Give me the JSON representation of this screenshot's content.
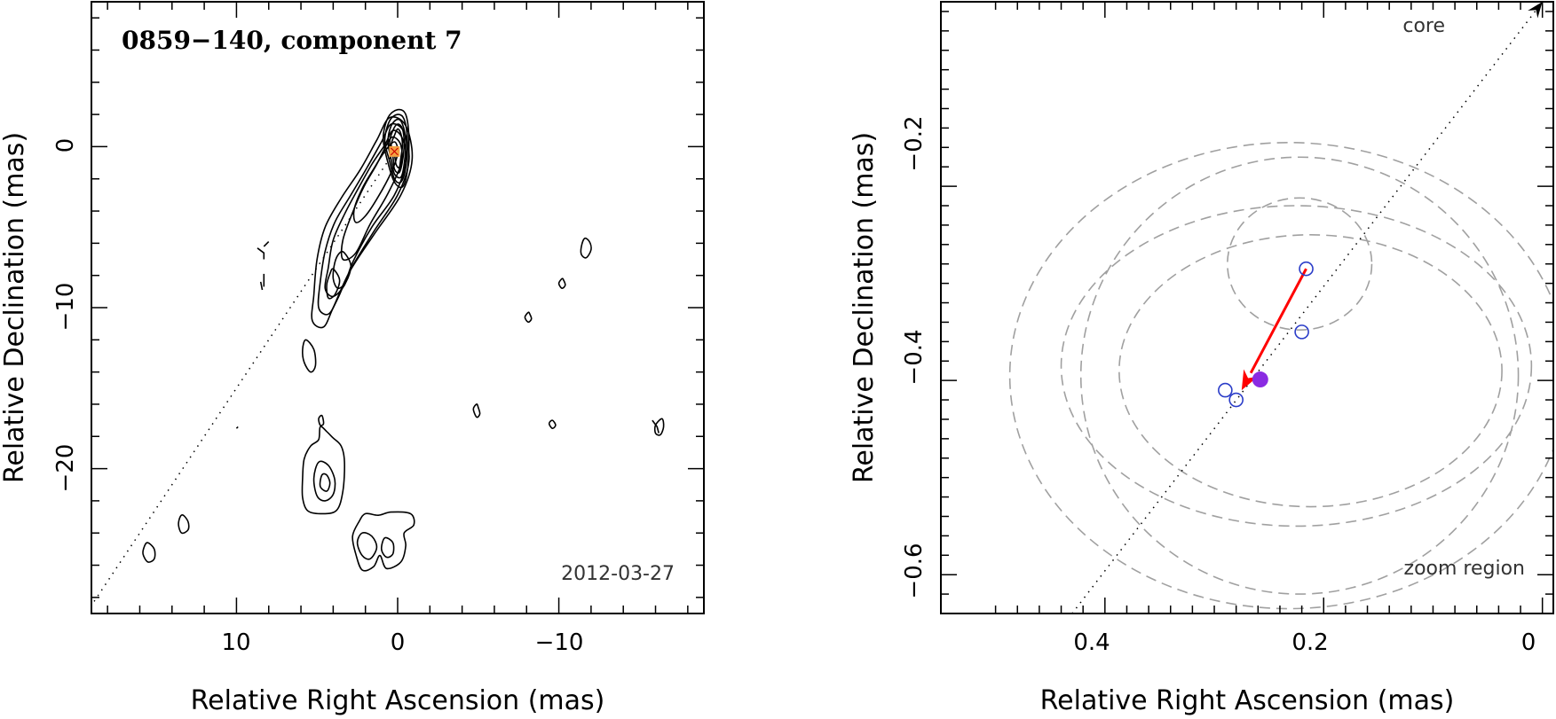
{
  "chart_data": [
    {
      "id": "left",
      "type": "contour",
      "title": "0859−140, component 7",
      "epoch": "2012-03-27",
      "xlabel": "Relative Right Ascension (mas)",
      "ylabel": "Relative Declination (mas)",
      "xlim": [
        19,
        -19
      ],
      "ylim": [
        -29,
        9
      ],
      "x_tick_labels": [
        "10",
        "0",
        "−10"
      ],
      "y_tick_labels": [
        "−20",
        "−10",
        "0"
      ],
      "jet_axis_from": [
        0,
        0
      ],
      "jet_axis_to": [
        19,
        -28.5
      ],
      "marker": {
        "ra": 0.2,
        "dec": -0.3,
        "color": "#f4a040"
      },
      "core_contours": [
        [
          [
            0.0,
            2.3
          ],
          [
            -0.5,
            2.0
          ],
          [
            -0.7,
            0.5
          ],
          [
            -0.6,
            -1.5
          ],
          [
            -0.3,
            -2.5
          ],
          [
            0.2,
            -2.2
          ],
          [
            0.6,
            -1.0
          ],
          [
            0.9,
            0.5
          ],
          [
            0.6,
            1.8
          ]
        ],
        [
          [
            0.0,
            2.0
          ],
          [
            -0.4,
            1.7
          ],
          [
            -0.6,
            0.4
          ],
          [
            -0.5,
            -1.3
          ],
          [
            -0.2,
            -2.2
          ],
          [
            0.2,
            -2.0
          ],
          [
            0.5,
            -0.9
          ],
          [
            0.8,
            0.4
          ],
          [
            0.5,
            1.6
          ]
        ],
        [
          [
            0.0,
            1.7
          ],
          [
            -0.3,
            1.4
          ],
          [
            -0.5,
            0.3
          ],
          [
            -0.4,
            -1.1
          ],
          [
            -0.2,
            -1.9
          ],
          [
            0.2,
            -1.7
          ],
          [
            0.4,
            -0.8
          ],
          [
            0.6,
            0.3
          ],
          [
            0.4,
            1.3
          ]
        ],
        [
          [
            0.0,
            1.4
          ],
          [
            -0.3,
            1.1
          ],
          [
            -0.4,
            0.2
          ],
          [
            -0.3,
            -0.9
          ],
          [
            -0.1,
            -1.6
          ],
          [
            0.2,
            -1.4
          ],
          [
            0.3,
            -0.6
          ],
          [
            0.5,
            0.2
          ],
          [
            0.3,
            1.0
          ]
        ],
        [
          [
            0.0,
            1.1
          ],
          [
            -0.2,
            0.8
          ],
          [
            -0.3,
            0.1
          ],
          [
            -0.2,
            -0.7
          ],
          [
            -0.1,
            -1.3
          ],
          [
            0.1,
            -1.1
          ],
          [
            0.2,
            -0.5
          ],
          [
            0.4,
            0.1
          ],
          [
            0.2,
            0.7
          ]
        ]
      ],
      "jet_contours": [
        [
          [
            0.5,
            1.8
          ],
          [
            -0.5,
            1.3
          ],
          [
            -0.9,
            -0.8
          ],
          [
            -0.2,
            -3.0
          ],
          [
            1.5,
            -5.5
          ],
          [
            3.0,
            -7.8
          ],
          [
            4.0,
            -10.0
          ],
          [
            4.6,
            -11.2
          ],
          [
            5.3,
            -10.8
          ],
          [
            5.2,
            -9.2
          ],
          [
            5.0,
            -7.0
          ],
          [
            4.5,
            -5.0
          ],
          [
            3.5,
            -3.2
          ],
          [
            2.3,
            -1.4
          ],
          [
            1.3,
            0.4
          ]
        ],
        [
          [
            0.4,
            1.4
          ],
          [
            -0.4,
            0.9
          ],
          [
            -0.7,
            -0.9
          ],
          [
            0.0,
            -3.0
          ],
          [
            1.5,
            -5.3
          ],
          [
            2.9,
            -7.6
          ],
          [
            3.7,
            -9.4
          ],
          [
            4.3,
            -10.4
          ],
          [
            4.9,
            -10.0
          ],
          [
            4.8,
            -8.4
          ],
          [
            4.5,
            -6.5
          ],
          [
            3.9,
            -4.7
          ],
          [
            2.9,
            -3.0
          ],
          [
            1.9,
            -1.3
          ],
          [
            1.0,
            0.3
          ]
        ],
        [
          [
            0.3,
            1.0
          ],
          [
            -0.3,
            0.5
          ],
          [
            -0.5,
            -1.0
          ],
          [
            0.2,
            -3.0
          ],
          [
            1.6,
            -5.0
          ],
          [
            2.8,
            -7.2
          ],
          [
            3.3,
            -8.6
          ],
          [
            4.0,
            -9.3
          ],
          [
            4.5,
            -8.8
          ],
          [
            4.3,
            -7.5
          ],
          [
            4.0,
            -5.8
          ],
          [
            3.3,
            -4.2
          ],
          [
            2.5,
            -2.7
          ],
          [
            1.6,
            -1.1
          ],
          [
            0.8,
            0.1
          ]
        ],
        [
          [
            0.3,
            0.6
          ],
          [
            -0.2,
            0.1
          ],
          [
            -0.2,
            -1.1
          ],
          [
            0.6,
            -2.9
          ],
          [
            1.7,
            -4.8
          ],
          [
            2.6,
            -6.6
          ],
          [
            3.4,
            -7.0
          ],
          [
            3.4,
            -5.8
          ],
          [
            2.8,
            -4.1
          ],
          [
            2.1,
            -2.5
          ],
          [
            1.3,
            -1.1
          ],
          [
            0.7,
            0.1
          ]
        ],
        [
          [
            0.2,
            0.3
          ],
          [
            0.0,
            -0.4
          ],
          [
            0.4,
            -1.6
          ],
          [
            1.2,
            -3.1
          ],
          [
            2.0,
            -4.3
          ],
          [
            2.6,
            -4.7
          ],
          [
            2.7,
            -3.9
          ],
          [
            2.2,
            -2.6
          ],
          [
            1.5,
            -1.4
          ],
          [
            0.8,
            -0.3
          ]
        ],
        [
          [
            3.3,
            -6.6
          ],
          [
            2.9,
            -7.4
          ],
          [
            3.2,
            -8.4
          ],
          [
            3.7,
            -8.8
          ],
          [
            4.0,
            -8.2
          ],
          [
            3.9,
            -7.2
          ],
          [
            3.6,
            -6.6
          ]
        ],
        [
          [
            4.0,
            -7.6
          ],
          [
            3.6,
            -8.3
          ],
          [
            3.9,
            -9.2
          ],
          [
            4.3,
            -9.4
          ],
          [
            4.4,
            -8.6
          ],
          [
            4.2,
            -7.9
          ]
        ]
      ],
      "blob_contours": [
        [
          [
            5.7,
            -12.0
          ],
          [
            5.2,
            -12.6
          ],
          [
            5.1,
            -13.6
          ],
          [
            5.4,
            -14.0
          ],
          [
            5.8,
            -13.4
          ],
          [
            5.9,
            -12.6
          ]
        ],
        [
          [
            4.8,
            -17.4
          ],
          [
            4.9,
            -18.2
          ],
          [
            5.4,
            -18.6
          ],
          [
            5.8,
            -19.4
          ],
          [
            5.9,
            -20.6
          ],
          [
            5.9,
            -21.8
          ],
          [
            5.6,
            -22.6
          ],
          [
            4.8,
            -22.8
          ],
          [
            3.8,
            -22.6
          ],
          [
            3.4,
            -21.4
          ],
          [
            3.3,
            -19.6
          ],
          [
            3.5,
            -18.6
          ],
          [
            4.0,
            -18.1
          ],
          [
            4.4,
            -17.7
          ]
        ],
        [
          [
            4.9,
            -19.6
          ],
          [
            5.2,
            -20.6
          ],
          [
            5.0,
            -21.7
          ],
          [
            4.5,
            -22.0
          ],
          [
            4.0,
            -21.6
          ],
          [
            3.9,
            -20.7
          ],
          [
            4.3,
            -19.8
          ]
        ],
        [
          [
            4.7,
            -20.4
          ],
          [
            4.8,
            -21.1
          ],
          [
            4.4,
            -21.4
          ],
          [
            4.2,
            -20.9
          ],
          [
            4.4,
            -20.4
          ]
        ],
        [
          [
            4.7,
            -16.7
          ],
          [
            4.6,
            -17.2
          ],
          [
            4.8,
            -17.3
          ],
          [
            4.9,
            -16.9
          ]
        ],
        [
          [
            2.0,
            -22.8
          ],
          [
            1.2,
            -22.9
          ],
          [
            0.4,
            -22.7
          ],
          [
            -0.8,
            -22.8
          ],
          [
            -1.0,
            -23.5
          ],
          [
            -0.4,
            -24.0
          ],
          [
            -0.5,
            -24.8
          ],
          [
            -0.2,
            -25.8
          ],
          [
            0.7,
            -26.2
          ],
          [
            1.1,
            -25.4
          ],
          [
            1.5,
            -26.1
          ],
          [
            2.2,
            -26.3
          ],
          [
            2.6,
            -25.3
          ],
          [
            2.8,
            -24.2
          ],
          [
            2.4,
            -23.3
          ]
        ],
        [
          [
            2.2,
            -24.0
          ],
          [
            1.6,
            -24.2
          ],
          [
            1.3,
            -24.9
          ],
          [
            1.7,
            -25.6
          ],
          [
            2.2,
            -25.4
          ],
          [
            2.5,
            -24.6
          ]
        ],
        [
          [
            0.8,
            -24.3
          ],
          [
            0.3,
            -24.6
          ],
          [
            0.3,
            -25.3
          ],
          [
            0.7,
            -25.5
          ],
          [
            1.0,
            -25.0
          ]
        ],
        [
          [
            15.5,
            -24.6
          ],
          [
            15.1,
            -25.0
          ],
          [
            15.1,
            -25.6
          ],
          [
            15.5,
            -25.8
          ],
          [
            15.8,
            -25.3
          ],
          [
            15.7,
            -24.8
          ]
        ],
        [
          [
            13.3,
            -22.9
          ],
          [
            13.0,
            -23.3
          ],
          [
            13.0,
            -23.8
          ],
          [
            13.4,
            -24.0
          ],
          [
            13.6,
            -23.5
          ],
          [
            13.5,
            -23.0
          ]
        ],
        [
          [
            -11.6,
            -5.7
          ],
          [
            -11.4,
            -6.2
          ],
          [
            -11.4,
            -6.7
          ],
          [
            -11.7,
            -6.9
          ],
          [
            -12.0,
            -6.4
          ],
          [
            -11.9,
            -5.9
          ]
        ],
        [
          [
            -10.2,
            -8.2
          ],
          [
            -10.0,
            -8.5
          ],
          [
            -10.2,
            -8.8
          ],
          [
            -10.4,
            -8.6
          ],
          [
            -10.3,
            -8.3
          ]
        ],
        [
          [
            -8.1,
            -10.3
          ],
          [
            -7.9,
            -10.6
          ],
          [
            -8.1,
            -10.9
          ],
          [
            -8.3,
            -10.7
          ],
          [
            -8.2,
            -10.4
          ]
        ],
        [
          [
            -4.9,
            -16.0
          ],
          [
            -4.7,
            -16.3
          ],
          [
            -4.9,
            -16.8
          ],
          [
            -5.1,
            -16.6
          ],
          [
            -5.0,
            -16.2
          ]
        ],
        [
          [
            -9.6,
            -17.0
          ],
          [
            -9.4,
            -17.2
          ],
          [
            -9.6,
            -17.5
          ],
          [
            -9.8,
            -17.3
          ]
        ],
        [
          [
            -16.4,
            -16.9
          ],
          [
            -16.0,
            -17.3
          ],
          [
            -16.0,
            -17.8
          ],
          [
            -16.3,
            -17.9
          ],
          [
            -16.5,
            -17.4
          ]
        ]
      ],
      "open_contours": [
        [
          [
            8.7,
            -6.3
          ],
          [
            8.3,
            -6.6
          ],
          [
            8.3,
            -7.0
          ]
        ],
        [
          [
            8.0,
            -5.9
          ],
          [
            8.3,
            -6.2
          ]
        ],
        [
          [
            8.3,
            -7.9
          ],
          [
            8.3,
            -8.7
          ]
        ],
        [
          [
            8.5,
            -8.4
          ],
          [
            8.4,
            -8.9
          ]
        ],
        [
          [
            9.9,
            -17.4
          ],
          [
            10.0,
            -17.5
          ]
        ],
        [
          [
            -15.8,
            -17.0
          ],
          [
            -16.1,
            -17.4
          ],
          [
            -16.2,
            -17.8
          ]
        ]
      ]
    },
    {
      "id": "right",
      "type": "scatter",
      "xlabel": "Relative Right Ascension (mas)",
      "ylabel": "Relative Declination (mas)",
      "xlim": [
        0.55,
        -0.01
      ],
      "ylim": [
        -0.64,
        -0.01
      ],
      "x_tick_labels": [
        "0.4",
        "0.2",
        "0"
      ],
      "y_tick_labels": [
        "−0.6",
        "−0.4",
        "−0.2"
      ],
      "annotation_core": "core",
      "annotation_zoom": "zoom region",
      "jet_axis_from": [
        0.43,
        -0.64
      ],
      "jet_axis_to": [
        0.0,
        -0.01
      ],
      "open_points": [
        {
          "ra": 0.216,
          "dec": -0.285
        },
        {
          "ra": 0.22,
          "dec": -0.35
        },
        {
          "ra": 0.29,
          "dec": -0.41
        },
        {
          "ra": 0.28,
          "dec": -0.42
        }
      ],
      "filled_point": {
        "ra": 0.258,
        "dec": -0.399,
        "color": "#8a2be2"
      },
      "open_point_color": "#2a3cc8",
      "motion_arrow": {
        "from_ra": 0.216,
        "from_dec": -0.285,
        "to_ra": 0.275,
        "to_dec": -0.41,
        "color": "#ff0000"
      },
      "uncertainty_ellipses": [
        {
          "ra": 0.222,
          "dec": -0.395,
          "ra_r": 0.2,
          "dec_r": 0.225
        },
        {
          "ra": 0.232,
          "dec": -0.395,
          "ra_r": 0.255,
          "dec_r": 0.24
        },
        {
          "ra": 0.225,
          "dec": -0.385,
          "ra_r": 0.215,
          "dec_r": 0.165
        },
        {
          "ra": 0.212,
          "dec": -0.39,
          "ra_r": 0.175,
          "dec_r": 0.14
        },
        {
          "ra": 0.222,
          "dec": -0.28,
          "ra_r": 0.066,
          "dec_r": 0.068
        }
      ]
    }
  ]
}
